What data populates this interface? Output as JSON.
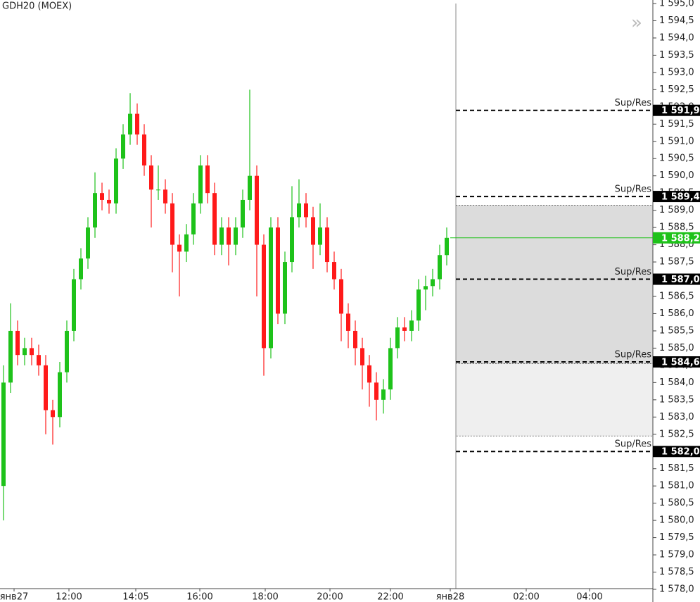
{
  "chart_data": {
    "type": "candlestick",
    "title": "GDH20 (MOEX)",
    "up_color": "#1ec21a",
    "down_color": "#ff1a1a",
    "open": [
      1581.0,
      1584.0,
      1585.5,
      1584.8,
      1585.0,
      1584.8,
      1584.5,
      1583.2,
      1583.0,
      1584.3,
      1585.5,
      1587.0,
      1587.6,
      1588.5,
      1589.5,
      1589.3,
      1589.2,
      1590.5,
      1591.2,
      1591.8,
      1591.2,
      1590.3,
      1589.6,
      1589.6,
      1589.2,
      1588.0,
      1587.8,
      1588.3,
      1589.2,
      1590.3,
      1589.5,
      1588.0,
      1588.5,
      1588.0,
      1588.5,
      1589.3,
      1590.0,
      1588.0,
      1585.0,
      1588.5,
      1586.0,
      1587.5,
      1588.8,
      1589.2,
      1588.8,
      1588.0,
      1588.5,
      1587.5,
      1587.0,
      1586.0,
      1585.5,
      1585.0,
      1584.5,
      1584.0,
      1583.5,
      1583.8,
      1585.0,
      1585.6,
      1585.5,
      1585.8,
      1586.7,
      1586.8,
      1587.0,
      1587.7
    ],
    "high": [
      1584.5,
      1586.3,
      1585.8,
      1585.3,
      1585.3,
      1585.1,
      1584.8,
      1583.5,
      1584.6,
      1585.8,
      1587.3,
      1587.9,
      1588.8,
      1590.1,
      1589.8,
      1589.6,
      1590.8,
      1591.5,
      1592.4,
      1592.1,
      1591.5,
      1590.6,
      1590.3,
      1589.9,
      1589.5,
      1588.3,
      1588.6,
      1589.5,
      1590.6,
      1590.6,
      1589.8,
      1588.8,
      1588.8,
      1588.8,
      1589.6,
      1592.5,
      1590.3,
      1588.3,
      1588.8,
      1588.8,
      1587.8,
      1589.7,
      1589.9,
      1589.5,
      1589.1,
      1589.2,
      1588.8,
      1587.8,
      1587.3,
      1586.3,
      1585.8,
      1585.3,
      1584.8,
      1584.3,
      1584.1,
      1585.3,
      1585.9,
      1585.9,
      1586.1,
      1587.0,
      1587.1,
      1587.3,
      1588.0,
      1588.5
    ],
    "low": [
      1580.0,
      1583.7,
      1584.5,
      1584.5,
      1584.5,
      1584.2,
      1582.5,
      1582.2,
      1582.7,
      1584.0,
      1585.2,
      1586.7,
      1587.3,
      1588.2,
      1589.0,
      1588.9,
      1588.9,
      1590.2,
      1590.9,
      1590.9,
      1590.0,
      1588.5,
      1589.3,
      1588.9,
      1587.2,
      1586.5,
      1587.5,
      1588.0,
      1588.9,
      1589.2,
      1587.7,
      1587.7,
      1587.4,
      1587.7,
      1588.2,
      1589.0,
      1586.5,
      1584.2,
      1584.7,
      1585.7,
      1585.7,
      1587.2,
      1588.5,
      1588.5,
      1587.3,
      1587.7,
      1587.2,
      1586.7,
      1585.2,
      1585.0,
      1584.5,
      1583.8,
      1583.3,
      1582.9,
      1583.1,
      1583.5,
      1584.7,
      1585.2,
      1585.2,
      1585.5,
      1586.1,
      1586.5,
      1586.7,
      1587.4
    ],
    "close": [
      1584.0,
      1585.5,
      1584.8,
      1585.0,
      1584.8,
      1584.5,
      1583.2,
      1583.0,
      1584.3,
      1585.5,
      1587.0,
      1587.6,
      1588.5,
      1589.5,
      1589.3,
      1589.2,
      1590.5,
      1591.2,
      1591.8,
      1591.2,
      1590.3,
      1589.6,
      1589.6,
      1589.2,
      1588.0,
      1587.8,
      1588.3,
      1589.2,
      1590.3,
      1589.5,
      1588.0,
      1588.5,
      1588.0,
      1588.5,
      1589.3,
      1590.0,
      1588.0,
      1585.0,
      1588.5,
      1586.0,
      1587.5,
      1588.8,
      1589.2,
      1588.8,
      1588.0,
      1588.5,
      1587.5,
      1587.0,
      1586.0,
      1585.5,
      1585.0,
      1584.5,
      1584.0,
      1583.5,
      1583.8,
      1585.0,
      1585.6,
      1585.5,
      1585.8,
      1586.7,
      1586.8,
      1587.0,
      1587.7,
      1588.2
    ],
    "xlim": [
      -0.5,
      92.3
    ],
    "xticks": [
      {
        "value": 1.5,
        "label": "янв27"
      },
      {
        "value": 9.3,
        "label": "12:00"
      },
      {
        "value": 18.8,
        "label": "14:05"
      },
      {
        "value": 27.9,
        "label": "16:00"
      },
      {
        "value": 37.2,
        "label": "18:00"
      },
      {
        "value": 46.4,
        "label": "20:00"
      },
      {
        "value": 55,
        "label": "22:00"
      },
      {
        "value": 63.5,
        "label": "янв28"
      },
      {
        "value": 74.3,
        "label": "02:00"
      },
      {
        "value": 83.3,
        "label": "04:00"
      }
    ],
    "ylim": [
      1578.0,
      1595.0
    ],
    "yticks": [
      {
        "value": 1578.0,
        "label": "1 578,0"
      },
      {
        "value": 1578.5,
        "label": "1 578,5"
      },
      {
        "value": 1579.0,
        "label": "1 579,0"
      },
      {
        "value": 1579.5,
        "label": "1 579,5"
      },
      {
        "value": 1580.0,
        "label": "1 580,0"
      },
      {
        "value": 1580.5,
        "label": "1 580,5"
      },
      {
        "value": 1581.0,
        "label": "1 581,0"
      },
      {
        "value": 1581.5,
        "label": "1 581,5"
      },
      {
        "value": 1582.0,
        "label": "1 582,0"
      },
      {
        "value": 1582.5,
        "label": "1 582,5"
      },
      {
        "value": 1583.0,
        "label": "1 583,0"
      },
      {
        "value": 1583.5,
        "label": "1 583,5"
      },
      {
        "value": 1584.0,
        "label": "1 584,0"
      },
      {
        "value": 1584.5,
        "label": "1 584,5"
      },
      {
        "value": 1585.0,
        "label": "1 585,0"
      },
      {
        "value": 1585.5,
        "label": "1 585,5"
      },
      {
        "value": 1586.0,
        "label": "1 586,0"
      },
      {
        "value": 1586.5,
        "label": "1 586,5"
      },
      {
        "value": 1587.0,
        "label": "1 587,0"
      },
      {
        "value": 1587.5,
        "label": "1 587,5"
      },
      {
        "value": 1588.0,
        "label": "1 588,0"
      },
      {
        "value": 1588.5,
        "label": "1 588,5"
      },
      {
        "value": 1589.0,
        "label": "1 589,0"
      },
      {
        "value": 1589.5,
        "label": "1 589,5"
      },
      {
        "value": 1590.0,
        "label": "1 590,0"
      },
      {
        "value": 1590.5,
        "label": "1 590,5"
      },
      {
        "value": 1591.0,
        "label": "1 591,0"
      },
      {
        "value": 1591.5,
        "label": "1 591,5"
      },
      {
        "value": 1592.0,
        "label": "1 592,0"
      },
      {
        "value": 1592.5,
        "label": "1 592,5"
      },
      {
        "value": 1593.0,
        "label": "1 593,0"
      },
      {
        "value": 1593.5,
        "label": "1 593,5"
      },
      {
        "value": 1594.0,
        "label": "1 594,0"
      },
      {
        "value": 1594.5,
        "label": "1 594,5"
      },
      {
        "value": 1595.0,
        "label": "1 595,0"
      }
    ],
    "zones": [
      {
        "top": 1589.15,
        "bottom": 1584.55,
        "color": "#dcdcdc"
      },
      {
        "top": 1584.55,
        "bottom": 1582.45,
        "color": "#efefef"
      }
    ],
    "levels": [
      {
        "name": "Sup/Res",
        "value": 1591.9,
        "label": "1 591,9"
      },
      {
        "name": "Sup/Res",
        "value": 1589.4,
        "label": "1 589,4"
      },
      {
        "name": "Sup/Res",
        "value": 1587.0,
        "label": "1 587,0"
      },
      {
        "name": "Sup/Res",
        "value": 1584.6,
        "label": "1 584,6"
      },
      {
        "name": "Sup/Res",
        "value": 1582.0,
        "label": "1 582,0"
      }
    ],
    "last_price": {
      "value": 1588.2,
      "label": "1 588,2",
      "color": "#1ec21a"
    }
  }
}
